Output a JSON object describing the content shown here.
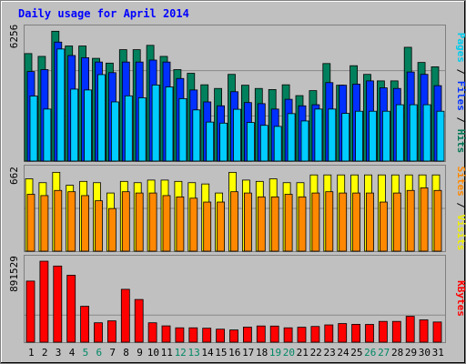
{
  "chart_data": {
    "type": "bar",
    "title": "Daily usage for April 2014",
    "days": [
      "1",
      "2",
      "3",
      "4",
      "5",
      "6",
      "7",
      "8",
      "9",
      "10",
      "11",
      "12",
      "13",
      "14",
      "15",
      "16",
      "17",
      "18",
      "19",
      "20",
      "21",
      "22",
      "23",
      "24",
      "25",
      "26",
      "27",
      "28",
      "29",
      "30",
      "31"
    ],
    "weekend_days": [
      "5",
      "6",
      "12",
      "13",
      "19",
      "20",
      "26",
      "27"
    ],
    "panels": [
      {
        "id": "hits",
        "max_label": "6256",
        "ymax": 6256,
        "legend": [
          {
            "text": "Pages",
            "color": "#00ccee"
          },
          {
            "text": " / ",
            "color": "#000000"
          },
          {
            "text": "Files",
            "color": "#0033ff"
          },
          {
            "text": " / ",
            "color": "#000000"
          },
          {
            "text": "Hits",
            "color": "#007755"
          }
        ],
        "series": [
          {
            "name": "Hits",
            "color": "#00805c",
            "values": [
              4960,
              4830,
              5990,
              5310,
              5310,
              4740,
              4520,
              5140,
              5140,
              5340,
              4830,
              4220,
              4050,
              3520,
              3350,
              4000,
              3500,
              3350,
              3300,
              3520,
              3020,
              3250,
              4500,
              3500,
              4400,
              4000,
              3700,
              3700,
              5250,
              4550,
              4350
            ]
          },
          {
            "name": "Files",
            "color": "#0030ff",
            "values": [
              4130,
              4220,
              5490,
              4870,
              4770,
              4570,
              4080,
              4570,
              4570,
              4660,
              4570,
              3810,
              3280,
              2730,
              2550,
              3200,
              2700,
              2650,
              2400,
              2850,
              2550,
              2600,
              3620,
              3500,
              3550,
              3700,
              3380,
              3350,
              4110,
              4000,
              3480
            ]
          },
          {
            "name": "Pages",
            "color": "#00ccff",
            "values": [
              3000,
              2400,
              5170,
              3320,
              3280,
              3990,
              2730,
              3010,
              2920,
              3510,
              3420,
              2880,
              2360,
              1800,
              1750,
              2390,
              1780,
              1650,
              1600,
              2190,
              1850,
              2400,
              2400,
              2200,
              2300,
              2300,
              2300,
              2600,
              2600,
              2600,
              2300
            ]
          }
        ]
      },
      {
        "id": "visits",
        "max_label": "662",
        "ymax": 662,
        "legend": [
          {
            "text": "Sites",
            "color": "#ff8800"
          },
          {
            "text": " / ",
            "color": "#000000"
          },
          {
            "text": "Visits",
            "color": "#eeee00"
          }
        ],
        "series": [
          {
            "name": "Visits",
            "color": "#ffff00",
            "values": [
              560,
              530,
              610,
              510,
              540,
              530,
              450,
              540,
              530,
              550,
              550,
              540,
              530,
              520,
              450,
              610,
              550,
              540,
              560,
              530,
              530,
              590,
              590,
              590,
              590,
              590,
              590,
              590,
              590,
              590,
              590
            ]
          },
          {
            "name": "Sites",
            "color": "#ff8800",
            "values": [
              440,
              430,
              470,
              460,
              430,
              390,
              330,
              460,
              450,
              450,
              430,
              420,
              410,
              380,
              380,
              460,
              450,
              420,
              420,
              440,
              420,
              450,
              460,
              450,
              450,
              450,
              380,
              450,
              470,
              490,
              470
            ]
          }
        ]
      },
      {
        "id": "kbytes",
        "max_label": "891529",
        "ymax": 891529,
        "legend": [
          {
            "text": "KBytes",
            "color": "#ff0000"
          }
        ],
        "series": [
          {
            "name": "KBytes",
            "color": "#ff0000",
            "values": [
              630000,
              835000,
              785000,
              690000,
              370000,
              200000,
              220000,
              545000,
              440000,
              200000,
              168000,
              148000,
              148000,
              144000,
              134000,
              126000,
              155000,
              167000,
              166000,
              148000,
              154000,
              162000,
              178000,
              192000,
              184000,
              183000,
              214000,
              214000,
              267000,
              230000,
              208000
            ]
          }
        ]
      }
    ]
  }
}
